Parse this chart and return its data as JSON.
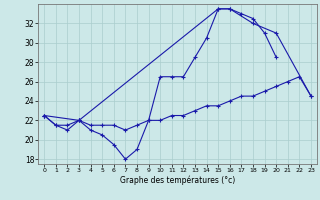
{
  "xlabel": "Graphe des températures (°c)",
  "background_color": "#cce8e8",
  "line_color": "#1a1aaa",
  "xlim": [
    -0.5,
    23.5
  ],
  "ylim": [
    17.5,
    34.0
  ],
  "xticks": [
    0,
    1,
    2,
    3,
    4,
    5,
    6,
    7,
    8,
    9,
    10,
    11,
    12,
    13,
    14,
    15,
    16,
    17,
    18,
    19,
    20,
    21,
    22,
    23
  ],
  "yticks": [
    18,
    20,
    22,
    24,
    26,
    28,
    30,
    32
  ],
  "series1_x": [
    0,
    1,
    2,
    3,
    4,
    5,
    6,
    7,
    8,
    9,
    10,
    11,
    12,
    13,
    14,
    15,
    16,
    17,
    18,
    19,
    20,
    21,
    22,
    23
  ],
  "series1_y": [
    22.5,
    21.5,
    21.5,
    22.0,
    21.5,
    21.5,
    21.5,
    21.0,
    21.5,
    22.0,
    22.0,
    22.5,
    22.5,
    23.0,
    23.5,
    23.5,
    24.0,
    24.5,
    24.5,
    25.0,
    25.5,
    26.0,
    26.5,
    24.5
  ],
  "series2_x": [
    0,
    1,
    2,
    3,
    4,
    5,
    6,
    7,
    8,
    9,
    10,
    11,
    12,
    13,
    14,
    15,
    16,
    17,
    18,
    19,
    20
  ],
  "series2_y": [
    22.5,
    21.5,
    21.0,
    22.0,
    21.0,
    20.5,
    19.5,
    18.0,
    19.0,
    22.0,
    26.5,
    26.5,
    26.5,
    28.5,
    30.5,
    33.5,
    33.5,
    33.0,
    32.5,
    31.0,
    28.5
  ],
  "series3_x": [
    0,
    3,
    15,
    16,
    18,
    20,
    23
  ],
  "series3_y": [
    22.5,
    22.0,
    33.5,
    33.5,
    32.0,
    31.0,
    24.5
  ]
}
